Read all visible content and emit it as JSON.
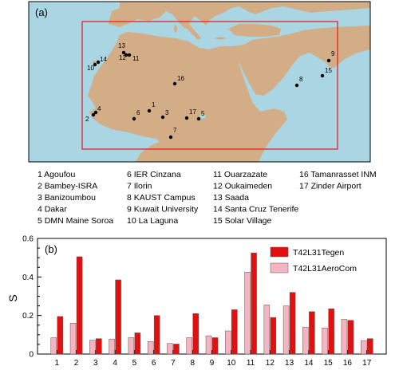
{
  "map_panel": {
    "panel_label": "(a)",
    "colors": {
      "sea": "#a9d6e2",
      "land": "#d2ad85",
      "box": "#e11a1a",
      "station": "#000000"
    },
    "stations": [
      {
        "n": "1",
        "name": "Agoufou"
      },
      {
        "n": "2",
        "name": "Bambey-ISRA"
      },
      {
        "n": "3",
        "name": "Banizoumbou"
      },
      {
        "n": "4",
        "name": "Dakar"
      },
      {
        "n": "5",
        "name": "DMN Maine Soroa"
      },
      {
        "n": "6",
        "name": "IER Cinzana"
      },
      {
        "n": "7",
        "name": "Ilorin"
      },
      {
        "n": "8",
        "name": "KAUST Campus"
      },
      {
        "n": "9",
        "name": "Kuwait University"
      },
      {
        "n": "10",
        "name": "La Laguna"
      },
      {
        "n": "11",
        "name": "Ouarzazate"
      },
      {
        "n": "12",
        "name": "Oukaimeden"
      },
      {
        "n": "13",
        "name": "Saada"
      },
      {
        "n": "14",
        "name": "Santa Cruz Tenerife"
      },
      {
        "n": "15",
        "name": "Solar Village"
      },
      {
        "n": "16",
        "name": "Tamanrasset INM"
      },
      {
        "n": "17",
        "name": "Zinder Airport"
      }
    ]
  },
  "chart_data": {
    "type": "bar",
    "panel_label": "(b)",
    "ylabel": "S",
    "xlabel": "",
    "categories": [
      "1",
      "2",
      "3",
      "4",
      "5",
      "6",
      "7",
      "8",
      "9",
      "10",
      "11",
      "12",
      "13",
      "14",
      "15",
      "16",
      "17"
    ],
    "ylim": [
      0,
      0.6
    ],
    "yticks": [
      0,
      0.2,
      0.4,
      0.6
    ],
    "series": [
      {
        "name": "T42L31AeroCom",
        "color": "#f5b5c0",
        "values": [
          0.085,
          0.16,
          0.072,
          0.078,
          0.085,
          0.065,
          0.055,
          0.085,
          0.095,
          0.12,
          0.425,
          0.255,
          0.25,
          0.14,
          0.135,
          0.18,
          0.07
        ]
      },
      {
        "name": "T42L31Tegen",
        "color": "#e31010",
        "values": [
          0.195,
          0.505,
          0.08,
          0.385,
          0.11,
          0.2,
          0.052,
          0.21,
          0.085,
          0.23,
          0.525,
          0.19,
          0.32,
          0.22,
          0.235,
          0.175,
          0.08
        ]
      }
    ],
    "legend": {
      "placement": "top-right",
      "order": [
        "T42L31Tegen",
        "T42L31AeroCom"
      ]
    },
    "grid": false
  }
}
